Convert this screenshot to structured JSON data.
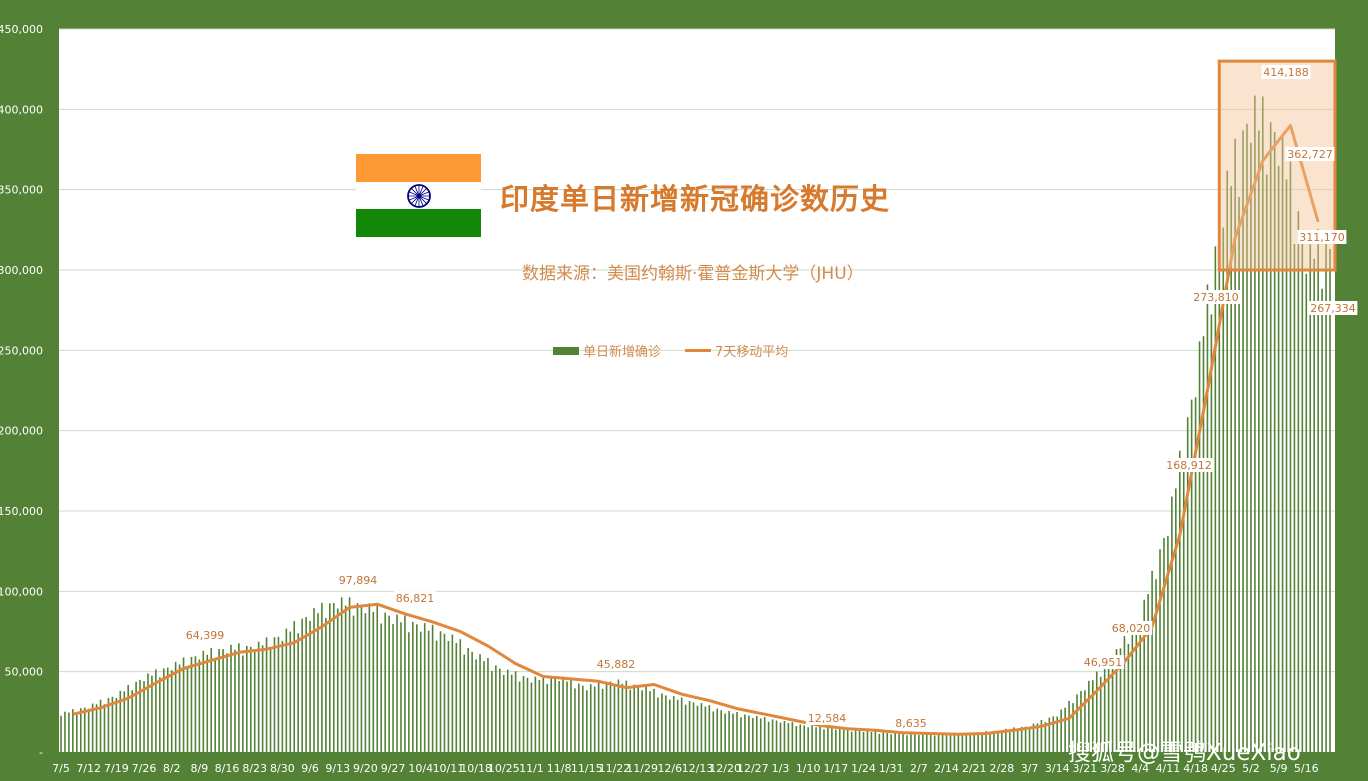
{
  "chart_data": {
    "type": "bar",
    "title": "印度单日新增新冠确诊数历史",
    "subtitle": "数据来源：美国约翰斯·霍普金斯大学（JHU）",
    "legend": {
      "bar": "单日新增确诊",
      "line": "7天移动平均",
      "placement": "top-center"
    },
    "y_ticks": [
      "-",
      "50,000",
      "100,000",
      "150,000",
      "200,000",
      "250,000",
      "300,000",
      "350,000",
      "400,000",
      "450,000"
    ],
    "ylim": [
      0,
      450000
    ],
    "grid": true,
    "x_ticks": [
      "7/5",
      "7/12",
      "7/19",
      "7/26",
      "8/2",
      "8/9",
      "8/16",
      "8/23",
      "8/30",
      "9/6",
      "9/13",
      "9/20",
      "9/27",
      "10/4",
      "10/11",
      "10/18",
      "10/25",
      "11/1",
      "11/8",
      "11/15",
      "11/22",
      "11/29",
      "12/6",
      "12/13",
      "12/20",
      "12/27",
      "1/3",
      "1/10",
      "1/17",
      "1/24",
      "1/31",
      "2/7",
      "2/14",
      "2/21",
      "2/28",
      "3/7",
      "3/14",
      "3/21",
      "3/28",
      "4/4",
      "4/11",
      "4/18",
      "4/25",
      "5/2",
      "5/9",
      "5/16"
    ],
    "series": [
      {
        "name": "单日新增确诊",
        "weekly_values": [
          23500,
          28000,
          35000,
          46000,
          53000,
          60000,
          64000,
          65000,
          72000,
          85000,
          93000,
          90000,
          83000,
          78000,
          72000,
          60000,
          50000,
          45000,
          46000,
          40000,
          44000,
          40000,
          34000,
          30000,
          25000,
          22000,
          19000,
          16000,
          14500,
          13000,
          11500,
          11000,
          11000,
          11500,
          13500,
          16000,
          23000,
          40000,
          58000,
          83000,
          140000,
          230000,
          340000,
          395000,
          380000,
          310000
        ],
        "weekly_moving_avg": [
          23500,
          27500,
          33500,
          43000,
          52000,
          57000,
          62000,
          64000,
          68000,
          78000,
          90000,
          92000,
          86000,
          81000,
          75000,
          66000,
          55000,
          47000,
          45500,
          44000,
          40000,
          42000,
          36000,
          32000,
          27000,
          23500,
          20000,
          16500,
          14500,
          13500,
          12000,
          11500,
          11000,
          11500,
          13500,
          16000,
          21000,
          38000,
          56000,
          78000,
          135000,
          225000,
          320000,
          368000,
          390000,
          330000
        ]
      }
    ],
    "data_labels": [
      {
        "x": "8/9",
        "value": "64,399"
      },
      {
        "x": "9/13",
        "value": "97,894"
      },
      {
        "x": "10/4",
        "value": "86,821"
      },
      {
        "x": "11/22",
        "value": "45,882"
      },
      {
        "x": "1/10",
        "value": "12,584"
      },
      {
        "x": "1/31",
        "value": "8,635"
      },
      {
        "x": "3/21",
        "value": "46,951"
      },
      {
        "x": "3/28",
        "value": "68,020"
      },
      {
        "x": "4/11",
        "value": "168,912"
      },
      {
        "x": "4/18",
        "value": "273,810"
      },
      {
        "x": "5/9",
        "value": "414,188"
      },
      {
        "x": "5/9",
        "value": "362,727"
      },
      {
        "x": "5/16",
        "value": "311,170"
      },
      {
        "x": "5/16",
        "value": "267,334"
      }
    ],
    "highlight": {
      "x_from": "4/25",
      "x_to": "5/16",
      "color": "#e0873c"
    }
  },
  "colors": {
    "background": "#538135",
    "bar": "#538135",
    "line": "#e0873c",
    "label": "#c0753a",
    "flag_saffron": "#ff9933",
    "flag_white": "#ffffff",
    "flag_green": "#138808",
    "flag_chakra": "#000080"
  },
  "watermark": "搜狐号@雪鸮XueXiao"
}
